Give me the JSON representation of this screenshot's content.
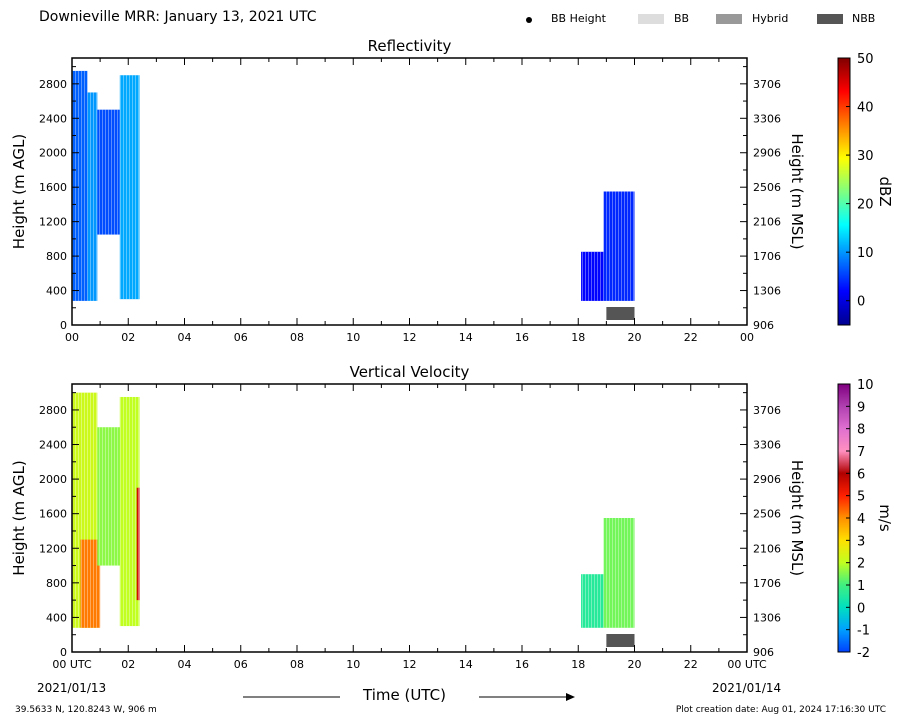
{
  "header": {
    "title": "Downieville MRR:  January 13, 2021 UTC",
    "legend": [
      {
        "label": "BB Height",
        "kind": "dot",
        "color": "#000000"
      },
      {
        "label": "BB",
        "kind": "swatch",
        "color": "#dddddd"
      },
      {
        "label": "Hybrid",
        "kind": "swatch",
        "color": "#999999"
      },
      {
        "label": "NBB",
        "kind": "swatch",
        "color": "#555555"
      }
    ]
  },
  "footer": {
    "location": "39.5633 N, 120.8243 W, 906 m",
    "plot_date": "Plot creation date: Aug 01, 2024 17:16:30 UTC",
    "xlabel": "Time (UTC)",
    "start_date": "2021/01/13",
    "end_date": "2021/01/14"
  },
  "chart_data": [
    {
      "type": "heatmap",
      "title": "Reflectivity",
      "ylabel": "Height (m AGL)",
      "ylabel_right": "Height (m MSL)",
      "xlim": [
        0,
        24
      ],
      "xticks": [
        "00",
        "02",
        "04",
        "06",
        "08",
        "10",
        "12",
        "14",
        "16",
        "18",
        "20",
        "22",
        "00"
      ],
      "ylim": [
        0,
        3100
      ],
      "yticks": [
        0,
        400,
        800,
        1200,
        1600,
        2000,
        2400,
        2800
      ],
      "yticks_right": [
        906,
        1306,
        1706,
        2106,
        2506,
        2906,
        3306,
        3706
      ],
      "colorbar": {
        "label": "dBZ",
        "min": -5,
        "max": 50,
        "ticks": [
          0,
          10,
          20,
          30,
          40,
          50
        ],
        "colormap": "jet"
      },
      "cells": [
        {
          "t": [
            0.0,
            0.55
          ],
          "h": [
            280,
            2950
          ],
          "value": 7
        },
        {
          "t": [
            0.55,
            0.9
          ],
          "h": [
            280,
            2700
          ],
          "value": 10
        },
        {
          "t": [
            0.9,
            1.7
          ],
          "h": [
            1050,
            2500
          ],
          "value": 6
        },
        {
          "t": [
            1.7,
            2.4
          ],
          "h": [
            300,
            2900
          ],
          "value": 11
        },
        {
          "t": [
            18.1,
            18.9
          ],
          "h": [
            280,
            850
          ],
          "value": 2
        },
        {
          "t": [
            18.9,
            20.0
          ],
          "h": [
            280,
            1550
          ],
          "value": 4
        }
      ],
      "bright_band": [
        {
          "t": [
            19.0,
            20.0
          ],
          "type": "NBB"
        }
      ]
    },
    {
      "type": "heatmap",
      "title": "Vertical Velocity",
      "ylabel": "Height (m AGL)",
      "ylabel_right": "Height (m MSL)",
      "xlim": [
        0,
        24
      ],
      "xticks": [
        "00 UTC",
        "02",
        "04",
        "06",
        "08",
        "10",
        "12",
        "14",
        "16",
        "18",
        "20",
        "22",
        "00 UTC"
      ],
      "ylim": [
        0,
        3100
      ],
      "yticks": [
        0,
        400,
        800,
        1200,
        1600,
        2000,
        2400,
        2800
      ],
      "yticks_right": [
        906,
        1306,
        1706,
        2106,
        2506,
        2906,
        3306,
        3706
      ],
      "colorbar": {
        "label": "m/s",
        "min": -2,
        "max": 10,
        "ticks": [
          -2,
          -1,
          0,
          1,
          2,
          3,
          4,
          5,
          6,
          7,
          8,
          9,
          10
        ],
        "colormap": "velocity"
      },
      "cells": [
        {
          "t": [
            0.0,
            0.9
          ],
          "h": [
            280,
            3000
          ],
          "value": 2.2
        },
        {
          "t": [
            0.3,
            1.0
          ],
          "h": [
            280,
            1300
          ],
          "value": 4.2
        },
        {
          "t": [
            0.9,
            1.8
          ],
          "h": [
            1000,
            2600
          ],
          "value": 1.6
        },
        {
          "t": [
            1.7,
            2.4
          ],
          "h": [
            300,
            2950
          ],
          "value": 2.0
        },
        {
          "t": [
            2.3,
            2.4
          ],
          "h": [
            600,
            1900
          ],
          "value": 5.6
        },
        {
          "t": [
            18.1,
            18.9
          ],
          "h": [
            280,
            900
          ],
          "value": 0.6
        },
        {
          "t": [
            18.9,
            20.0
          ],
          "h": [
            280,
            1550
          ],
          "value": 1.4
        }
      ],
      "bright_band": [
        {
          "t": [
            19.0,
            20.0
          ],
          "type": "NBB"
        }
      ]
    }
  ]
}
